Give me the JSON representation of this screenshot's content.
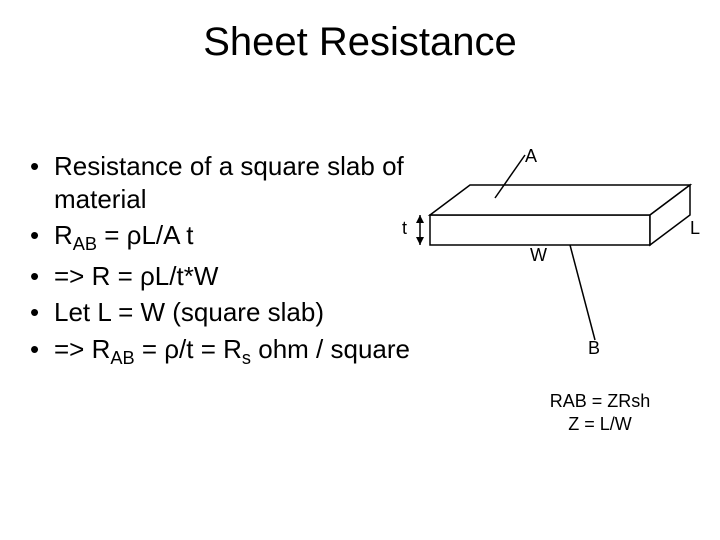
{
  "title": "Sheet Resistance",
  "bullets": [
    {
      "text": "Resistance of a square slab of material",
      "html": false
    },
    {
      "text": "R<sub>AB</sub> = ρL/A t",
      "html": true
    },
    {
      "text": "=> R = ρL/t*W",
      "html": false
    },
    {
      "text": "Let L = W (square slab)",
      "html": false
    },
    {
      "text": "=> R<sub>AB</sub> = ρ/t = R<sub>s</sub> ohm / square",
      "html": true
    }
  ],
  "diagram": {
    "labels": {
      "A": "A",
      "B": "B",
      "t": "t",
      "W": "W",
      "L": "L"
    },
    "caption_line1": "RAB = ZRsh",
    "caption_line2": "Z = L/W",
    "stroke": "#000000",
    "fill": "#ffffff",
    "stroke_width": 1.5
  }
}
